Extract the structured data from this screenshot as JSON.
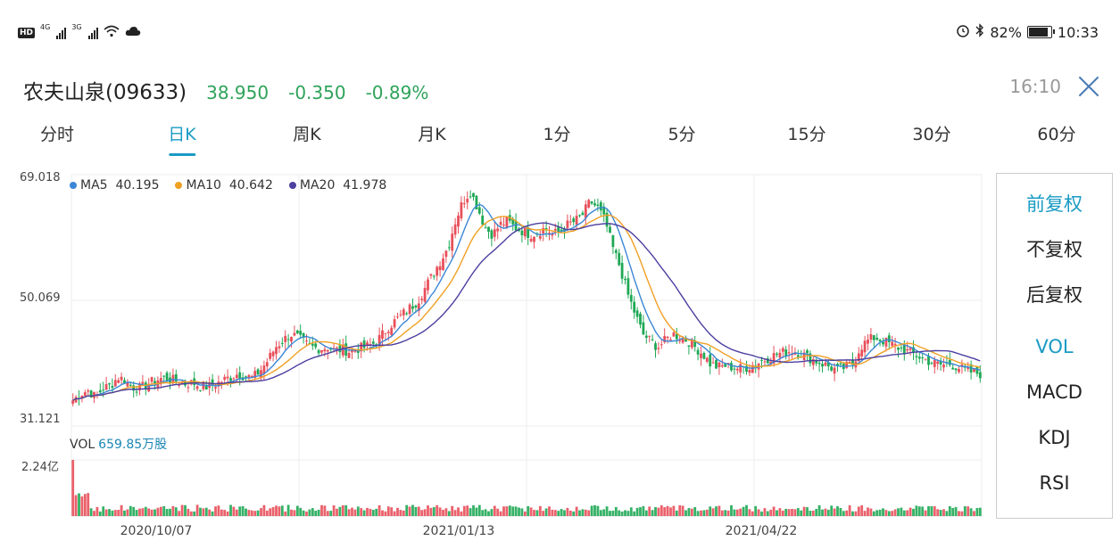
{
  "status_bar": {
    "left": {
      "hd": "HD",
      "net1": "4G",
      "net2": "3G"
    },
    "right": {
      "battery_pct": "82%",
      "clock": "10:33"
    }
  },
  "header": {
    "name": "农夫山泉(09633)",
    "price": "38.950",
    "change": "-0.350",
    "change_pct": "-0.89%",
    "time": "16:10",
    "color_down": "#2ea35a"
  },
  "tabs": [
    "分时",
    "日K",
    "周K",
    "月K",
    "1分",
    "5分",
    "15分",
    "30分",
    "60分"
  ],
  "active_tab": 1,
  "legend": {
    "ma5": {
      "label": "MA5",
      "value": "40.195",
      "color": "#3b87d6"
    },
    "ma10": {
      "label": "MA10",
      "value": "40.642",
      "color": "#f0a024"
    },
    "ma20": {
      "label": "MA20",
      "value": "41.978",
      "color": "#4b3fa0"
    }
  },
  "y_labels": {
    "max": "69.018",
    "mid": "50.069",
    "min": "31.121"
  },
  "volume": {
    "label": "VOL",
    "value": "659.85万股",
    "max_label": "2.24亿"
  },
  "x_labels": [
    "2020/10/07",
    "2021/01/13",
    "2021/04/22"
  ],
  "side_panel": {
    "items": [
      "前复权",
      "不复权",
      "后复权",
      "VOL",
      "MACD",
      "KDJ",
      "RSI"
    ],
    "active": [
      0,
      3
    ]
  },
  "colors": {
    "up": "#e8505b",
    "down": "#1fa855",
    "accent": "#1a9bc4"
  },
  "chart_data": {
    "type": "candlestick",
    "y_range": [
      31.121,
      69.018
    ],
    "close_series": [
      35,
      36,
      36.5,
      35.5,
      36.8,
      37.2,
      38.5,
      38,
      37,
      36.8,
      37.5,
      38,
      38.4,
      38.2,
      37.8,
      37.5,
      37.6,
      37.2,
      37,
      37.4,
      38,
      38.5,
      39,
      38.6,
      38.4,
      39.5,
      41,
      43,
      44,
      45,
      44.5,
      43.5,
      43,
      42.8,
      43,
      42.5,
      42.7,
      42.3,
      42.8,
      43,
      43.5,
      44.5,
      46,
      47,
      48,
      49,
      50,
      52,
      54,
      56,
      58,
      62,
      65,
      66.5,
      64,
      61,
      60,
      61.5,
      62,
      61,
      60.5,
      60,
      60.3,
      61,
      60,
      60.5,
      61.5,
      62,
      63,
      65,
      64,
      62,
      58,
      55,
      51,
      48,
      45,
      44,
      43,
      44,
      45,
      44.5,
      44,
      43,
      42,
      40.5,
      40,
      40.2,
      40,
      39.8,
      40,
      40.5,
      41,
      41.5,
      42,
      42.3,
      42.5,
      42.2,
      41.5,
      41,
      40.5,
      40,
      39.5,
      40,
      40.5,
      43,
      44,
      44.5,
      44,
      43.5,
      43,
      42.5,
      42,
      41.5,
      41,
      40.5,
      40.3,
      40.5,
      40,
      39.5,
      39.2,
      39
    ],
    "volume_label_max": "2.24亿"
  }
}
